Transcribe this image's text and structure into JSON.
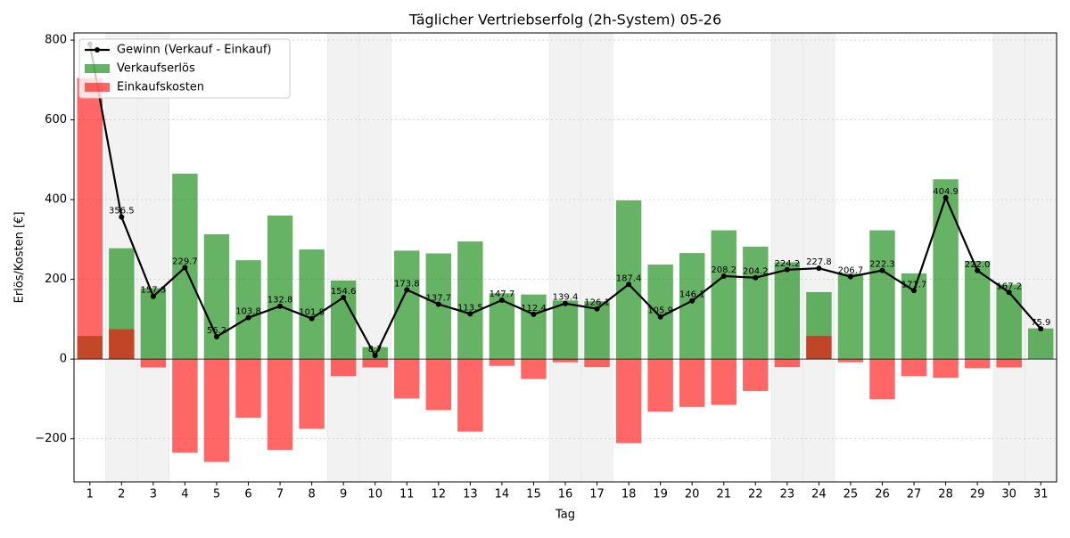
{
  "chart_data": {
    "type": "bar",
    "title": "Täglicher Vertriebserfolg (2h-System) 05-26",
    "x_label": "Tag",
    "y_label": "Erlös/Kosten [€]",
    "categories": [
      1,
      2,
      3,
      4,
      5,
      6,
      7,
      8,
      9,
      10,
      11,
      12,
      13,
      14,
      15,
      16,
      17,
      18,
      19,
      20,
      21,
      22,
      23,
      24,
      25,
      26,
      27,
      28,
      29,
      30,
      31
    ],
    "highlight_categories": [
      2,
      3,
      9,
      10,
      16,
      17,
      23,
      24,
      30,
      31
    ],
    "highlight_color": "#f2f2f2",
    "ylim": [
      -308,
      818
    ],
    "yticks": [
      {
        "value": -200,
        "label": "−200"
      },
      0,
      200,
      400,
      600,
      800
    ],
    "grid": true,
    "legend": "upper-left",
    "series": [
      {
        "name": "Gewinn (Verkauf - Einkauf)",
        "type": "line",
        "color": "#000000",
        "values": [
          790,
          356.5,
          157.3,
          229.7,
          56.2,
          103.8,
          132.8,
          101.8,
          154.6,
          8.7,
          173.8,
          137.7,
          113.5,
          147.7,
          112.4,
          139.4,
          126.1,
          187.4,
          105.9,
          146.1,
          208.2,
          204.2,
          224.2,
          227.8,
          206.7,
          222.3,
          171.7,
          404.9,
          222.0,
          167.2,
          75.9
        ],
        "value_labels": [
          null,
          "356.5",
          "157.3",
          "229.7",
          "56.2",
          "103.8",
          "132.8",
          "101.8",
          "154.6",
          "8.7",
          "173.8",
          "137.7",
          "113.5",
          "147.7",
          "112.4",
          "139.4",
          "126.1",
          "187.4",
          "105.9",
          "146.1",
          "208.2",
          "204.2",
          "224.2",
          "227.8",
          "206.7",
          "222.3",
          "171.7",
          "404.9",
          "222.0",
          "167.2",
          "75.9"
        ]
      },
      {
        "name": "Verkaufserlös",
        "type": "bar",
        "color": "#008000",
        "values": [
          58,
          278,
          178,
          465,
          313,
          248,
          360,
          275,
          197,
          30,
          272,
          265,
          295,
          165,
          162,
          147,
          145,
          398,
          237,
          266,
          323,
          282,
          243,
          168,
          215,
          323,
          215,
          451,
          246,
          187,
          77
        ]
      },
      {
        "name": "Einkaufskosten",
        "type": "bar",
        "color": "#ff0000",
        "values": [
          705,
          75,
          -21,
          -235,
          -258,
          -147,
          -228,
          -175,
          -43,
          -21,
          -99,
          -128,
          -182,
          -17,
          -50,
          -8,
          -20,
          -211,
          -132,
          -120,
          -115,
          -80,
          -20,
          58,
          -8,
          -101,
          -43,
          -47,
          -23,
          -21,
          0
        ]
      }
    ]
  }
}
